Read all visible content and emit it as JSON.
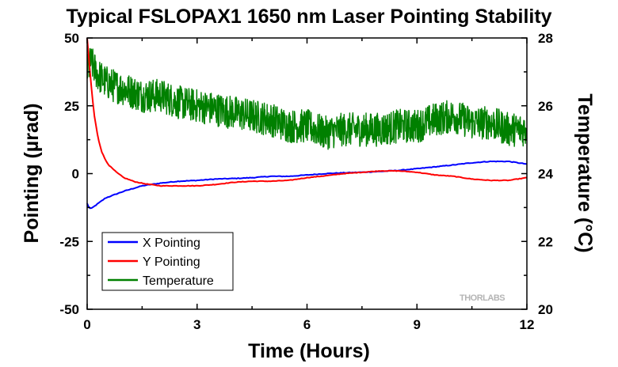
{
  "chart_data": {
    "type": "line",
    "title": "Typical FSLOPAX1 1650 nm Laser Pointing Stability",
    "xlabel": "Time (Hours)",
    "ylabel": "Pointing (µrad)",
    "y2label": "Temperature (°C)",
    "xlim": [
      0,
      12
    ],
    "ylim": [
      -50,
      50
    ],
    "y2lim": [
      20,
      28
    ],
    "x_ticks": [
      0,
      3,
      6,
      9,
      12
    ],
    "y_ticks": [
      50,
      25,
      0,
      -25,
      -50
    ],
    "y2_ticks": [
      28,
      26,
      24,
      22,
      20
    ],
    "grid": false,
    "legend_position": "bottom-left",
    "series": [
      {
        "name": "X Pointing",
        "axis": "left",
        "color": "#0000ff",
        "x": [
          0,
          0.05,
          0.1,
          0.2,
          0.3,
          0.5,
          0.8,
          1.0,
          1.5,
          2.0,
          2.5,
          3.0,
          3.5,
          4.0,
          4.5,
          5.0,
          5.5,
          6.0,
          6.5,
          7.0,
          7.5,
          8.0,
          8.5,
          9.0,
          9.5,
          10.0,
          10.5,
          11.0,
          11.5,
          12.0
        ],
        "y": [
          -11,
          -12.5,
          -13,
          -12,
          -11,
          -9,
          -7.5,
          -6.5,
          -4.5,
          -3.5,
          -2.8,
          -2.5,
          -2,
          -1.8,
          -1.5,
          -1,
          -1,
          -0.5,
          0,
          0.3,
          0.5,
          0.8,
          1.2,
          1.8,
          2.5,
          3.2,
          4,
          4.5,
          4.5,
          3.5
        ]
      },
      {
        "name": "Y Pointing",
        "axis": "left",
        "color": "#ff0000",
        "x": [
          0,
          0.05,
          0.1,
          0.15,
          0.2,
          0.3,
          0.4,
          0.5,
          0.6,
          0.8,
          1.0,
          1.3,
          1.6,
          2.0,
          2.5,
          3.0,
          3.5,
          4.0,
          4.5,
          5.0,
          5.5,
          6.0,
          6.5,
          7.0,
          7.5,
          8.0,
          8.5,
          9.0,
          9.5,
          10.0,
          10.5,
          11.0,
          11.5,
          12.0
        ],
        "y": [
          50,
          42,
          34,
          27,
          21,
          13,
          8,
          5,
          3,
          0.5,
          -1.5,
          -3,
          -3.8,
          -4.5,
          -4.5,
          -4.5,
          -4,
          -3.2,
          -2.8,
          -2.8,
          -2.5,
          -1.5,
          -0.8,
          0,
          0.5,
          1,
          1,
          0.5,
          -0.5,
          -1,
          -2,
          -2.5,
          -2.5,
          -1.5
        ]
      },
      {
        "name": "Temperature",
        "axis": "right",
        "color": "#008000",
        "x": [
          0,
          0.1,
          0.2,
          0.3,
          0.5,
          0.7,
          1.0,
          1.5,
          2.0,
          2.5,
          3.0,
          3.5,
          4.0,
          4.5,
          5.0,
          5.5,
          6.0,
          6.5,
          7.0,
          7.5,
          8.0,
          8.5,
          9.0,
          9.5,
          10.0,
          10.5,
          11.0,
          11.5,
          12.0
        ],
        "y": [
          27,
          27.3,
          27.1,
          26.9,
          26.7,
          26.6,
          26.5,
          26.3,
          26.3,
          26.1,
          26,
          25.9,
          25.8,
          25.7,
          25.6,
          25.4,
          25.4,
          25.2,
          25.3,
          25.3,
          25.3,
          25.4,
          25.4,
          25.6,
          25.7,
          25.5,
          25.5,
          25.3,
          25.3
        ]
      }
    ],
    "watermark": "THORLABS"
  }
}
